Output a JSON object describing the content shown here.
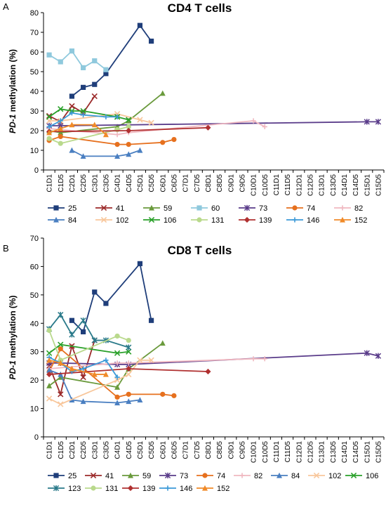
{
  "chart_data": [
    {
      "type": "line",
      "panel": "A",
      "title": "CD4 T cells",
      "ylabel_italic": "PD-1",
      "ylabel_rest": " methylation (%)",
      "xlabel": "",
      "ylim": [
        0,
        80
      ],
      "yticks": [
        0,
        10,
        20,
        30,
        40,
        50,
        60,
        70,
        80
      ],
      "grid": false,
      "legend": "bottom",
      "categories": [
        "C1D1",
        "C1D5",
        "C2D1",
        "C2D5",
        "C3D1",
        "C3D5",
        "C4D1",
        "C4D5",
        "C5D1",
        "C5D5",
        "C6D1",
        "C6D5",
        "C7D1",
        "C7D5",
        "C8D1",
        "C8D5",
        "C9D1",
        "C9D5",
        "C10D1",
        "C10D5",
        "C11D1",
        "C11D5",
        "C12D1",
        "C12D5",
        "C13D1",
        "C13D5",
        "C14D1",
        "C14D5",
        "C15D1",
        "C15D5"
      ],
      "series": [
        {
          "name": "25",
          "color": "#1f3e7a",
          "marker": "square",
          "points": [
            [
              2,
              37.5
            ],
            [
              3,
              42
            ],
            [
              4,
              43.5
            ],
            [
              5,
              49
            ],
            [
              8,
              73.5
            ],
            [
              9,
              65.5
            ]
          ]
        },
        {
          "name": "41",
          "color": "#9b2a2a",
          "marker": "x",
          "points": [
            [
              0,
              27.5
            ],
            [
              1,
              24.5
            ],
            [
              2,
              32.5
            ],
            [
              3,
              29
            ],
            [
              4,
              37.5
            ]
          ]
        },
        {
          "name": "59",
          "color": "#6a9a3c",
          "marker": "triangle",
          "points": [
            [
              0,
              20
            ],
            [
              1,
              19
            ],
            [
              6,
              22
            ],
            [
              7,
              25
            ],
            [
              10,
              39
            ]
          ]
        },
        {
          "name": "60",
          "color": "#8fc9dd",
          "marker": "square",
          "points": [
            [
              0,
              58.5
            ],
            [
              1,
              55
            ],
            [
              2,
              60.5
            ],
            [
              3,
              52
            ],
            [
              4,
              55.5
            ],
            [
              5,
              51
            ]
          ]
        },
        {
          "name": "73",
          "color": "#5a3c8a",
          "marker": "star",
          "points": [
            [
              0,
              22.5
            ],
            [
              1,
              22.5
            ],
            [
              28,
              24.5
            ],
            [
              29,
              24.5
            ]
          ]
        },
        {
          "name": "74",
          "color": "#e6701e",
          "marker": "circle",
          "points": [
            [
              0,
              15
            ],
            [
              1,
              17
            ],
            [
              6,
              13
            ],
            [
              7,
              13
            ],
            [
              10,
              14
            ],
            [
              11,
              15.5
            ]
          ]
        },
        {
          "name": "82",
          "color": "#f0b8c0",
          "marker": "plus",
          "points": [
            [
              0,
              21
            ],
            [
              6,
              18
            ],
            [
              7,
              19
            ],
            [
              18,
              25
            ],
            [
              19,
              22
            ]
          ]
        },
        {
          "name": "84",
          "color": "#4a7fc1",
          "marker": "triangle",
          "points": [
            [
              2,
              10
            ],
            [
              3,
              7
            ],
            [
              6,
              7
            ],
            [
              7,
              8
            ],
            [
              8,
              10
            ]
          ]
        },
        {
          "name": "102",
          "color": "#f8c79c",
          "marker": "x",
          "points": [
            [
              0,
              25
            ],
            [
              1,
              25
            ],
            [
              6,
              28.5
            ],
            [
              8,
              25.5
            ],
            [
              9,
              24
            ]
          ]
        },
        {
          "name": "106",
          "color": "#2aa02a",
          "marker": "x",
          "points": [
            [
              0,
              27
            ],
            [
              1,
              31
            ],
            [
              2,
              30
            ],
            [
              3,
              30
            ],
            [
              6,
              27
            ],
            [
              7,
              25.5
            ]
          ]
        },
        {
          "name": "131",
          "color": "#b9d98c",
          "marker": "circle",
          "points": [
            [
              0,
              16
            ],
            [
              1,
              13.5
            ],
            [
              6,
              20.5
            ],
            [
              7,
              22
            ]
          ]
        },
        {
          "name": "139",
          "color": "#b03030",
          "marker": "diamond",
          "points": [
            [
              0,
              19.5
            ],
            [
              7,
              20
            ],
            [
              14,
              21.5
            ]
          ]
        },
        {
          "name": "146",
          "color": "#3c9ad8",
          "marker": "plus",
          "points": [
            [
              0,
              22
            ],
            [
              1,
              25
            ],
            [
              2,
              29
            ],
            [
              3,
              28
            ],
            [
              5,
              27
            ],
            [
              6,
              27
            ]
          ]
        },
        {
          "name": "152",
          "color": "#f08a28",
          "marker": "triangle",
          "points": [
            [
              0,
              19
            ],
            [
              1,
              21
            ],
            [
              2,
              23
            ],
            [
              4,
              23
            ],
            [
              5,
              18
            ]
          ]
        }
      ]
    },
    {
      "type": "line",
      "panel": "B",
      "title": "CD8 T cells",
      "ylabel_italic": "PD-1",
      "ylabel_rest": " methylation (%)",
      "xlabel": "",
      "ylim": [
        0,
        70
      ],
      "yticks": [
        0,
        10,
        20,
        30,
        40,
        50,
        60,
        70
      ],
      "grid": false,
      "legend": "bottom",
      "categories": [
        "C1D1",
        "C1D5",
        "C2D1",
        "C2D5",
        "C3D1",
        "C3D5",
        "C4D1",
        "C4D5",
        "C5D1",
        "C5D5",
        "C6D1",
        "C6D5",
        "C7D1",
        "C7D5",
        "C8D1",
        "C8D5",
        "C9D1",
        "C9D5",
        "C10D1",
        "C10D5",
        "C11D1",
        "C11D5",
        "C12D1",
        "C12D5",
        "C13D1",
        "C13D5",
        "C14D1",
        "C14D5",
        "C15D1",
        "C15D5"
      ],
      "series": [
        {
          "name": "25",
          "color": "#1f3e7a",
          "marker": "square",
          "points": [
            [
              2,
              41
            ],
            [
              3,
              37
            ],
            [
              4,
              51
            ],
            [
              5,
              47
            ],
            [
              8,
              61
            ],
            [
              9,
              41
            ]
          ]
        },
        {
          "name": "41",
          "color": "#9b2a2a",
          "marker": "x",
          "points": [
            [
              0,
              25
            ],
            [
              1,
              15
            ],
            [
              2,
              32
            ],
            [
              3,
              21
            ],
            [
              4,
              34
            ]
          ]
        },
        {
          "name": "59",
          "color": "#6a9a3c",
          "marker": "triangle",
          "points": [
            [
              0,
              18
            ],
            [
              1,
              21
            ],
            [
              6,
              17.5
            ],
            [
              7,
              24
            ],
            [
              10,
              33
            ]
          ]
        },
        {
          "name": "73",
          "color": "#5a3c8a",
          "marker": "star",
          "points": [
            [
              0,
              26
            ],
            [
              1,
              26
            ],
            [
              6,
              25.5
            ],
            [
              7,
              25.5
            ],
            [
              28,
              29.5
            ],
            [
              29,
              28.5
            ]
          ]
        },
        {
          "name": "74",
          "color": "#e6701e",
          "marker": "circle",
          "points": [
            [
              0,
              23
            ],
            [
              1,
              31
            ],
            [
              6,
              14
            ],
            [
              7,
              15
            ],
            [
              10,
              15
            ],
            [
              11,
              14.5
            ]
          ]
        },
        {
          "name": "82",
          "color": "#f0b8c0",
          "marker": "plus",
          "points": [
            [
              0,
              24
            ],
            [
              6,
              26
            ],
            [
              7,
              26
            ],
            [
              18,
              27.5
            ],
            [
              19,
              27.5
            ]
          ]
        },
        {
          "name": "84",
          "color": "#4a7fc1",
          "marker": "triangle",
          "points": [
            [
              0,
              23.5
            ],
            [
              1,
              22
            ],
            [
              2,
              13
            ],
            [
              3,
              12.5
            ],
            [
              6,
              12
            ],
            [
              7,
              12.5
            ],
            [
              8,
              13
            ]
          ]
        },
        {
          "name": "102",
          "color": "#f8c79c",
          "marker": "x",
          "points": [
            [
              0,
              13.5
            ],
            [
              1,
              11.5
            ],
            [
              6,
              20
            ],
            [
              7,
              22
            ],
            [
              8,
              27
            ],
            [
              9,
              27
            ]
          ]
        },
        {
          "name": "106",
          "color": "#2aa02a",
          "marker": "x",
          "points": [
            [
              0,
              29.5
            ],
            [
              1,
              32.5
            ],
            [
              6,
              29.5
            ],
            [
              7,
              30
            ]
          ]
        },
        {
          "name": "123",
          "color": "#2a7a8a",
          "marker": "star",
          "points": [
            [
              0,
              38
            ],
            [
              1,
              43
            ],
            [
              2,
              36
            ],
            [
              3,
              41
            ],
            [
              4,
              34
            ],
            [
              5,
              34
            ],
            [
              7,
              31.5
            ]
          ]
        },
        {
          "name": "131",
          "color": "#b9d98c",
          "marker": "circle",
          "points": [
            [
              0,
              37.5
            ],
            [
              1,
              27
            ],
            [
              6,
              35.5
            ],
            [
              7,
              34
            ]
          ]
        },
        {
          "name": "139",
          "color": "#b03030",
          "marker": "diamond",
          "points": [
            [
              0,
              22
            ],
            [
              7,
              24
            ],
            [
              14,
              23
            ]
          ]
        },
        {
          "name": "146",
          "color": "#3c9ad8",
          "marker": "plus",
          "points": [
            [
              0,
              28
            ],
            [
              1,
              26
            ],
            [
              2,
              23
            ],
            [
              3,
              24
            ],
            [
              5,
              27
            ],
            [
              6,
              21
            ]
          ]
        },
        {
          "name": "152",
          "color": "#f08a28",
          "marker": "triangle",
          "points": [
            [
              0,
              27
            ],
            [
              1,
              26
            ],
            [
              2,
              24
            ],
            [
              4,
              22
            ],
            [
              5,
              22
            ]
          ]
        }
      ]
    }
  ]
}
